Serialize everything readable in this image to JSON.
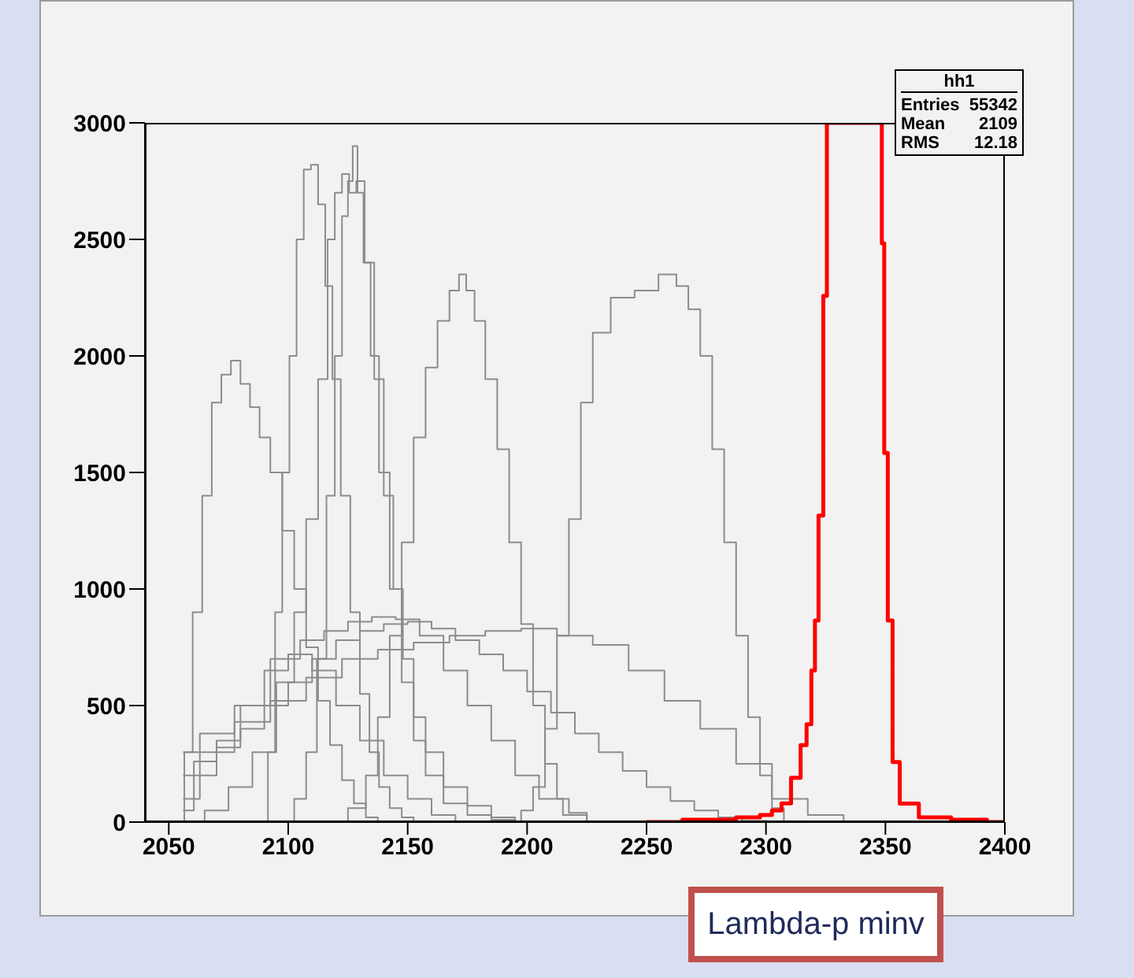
{
  "chart_data": {
    "type": "step",
    "xlim": [
      2040,
      2400
    ],
    "ylim": [
      0,
      3000
    ],
    "xticks": [
      2050,
      2100,
      2150,
      2200,
      2250,
      2300,
      2350,
      2400
    ],
    "yticks": [
      0,
      500,
      1000,
      1500,
      2000,
      2500,
      3000
    ],
    "grid": false,
    "legend": false,
    "marker": "none",
    "line_style": "solid",
    "annotations": [
      "hh1",
      "Entries",
      "55342",
      "Mean",
      "2109",
      "RMS",
      "12.18",
      "Lambda-p minv"
    ],
    "series": [
      {
        "color": "#8c8c8c",
        "x": [
          2055,
          2058,
          2062,
          2066,
          2070,
          2074,
          2078,
          2082,
          2086,
          2090,
          2095,
          2100,
          2105,
          2110,
          2115,
          2120,
          2125,
          2130,
          2135,
          2140
        ],
        "values": [
          0,
          300,
          900,
          1400,
          1800,
          1920,
          1980,
          1880,
          1780,
          1650,
          1500,
          1250,
          1000,
          750,
          520,
          330,
          180,
          80,
          20,
          0
        ]
      },
      {
        "color": "#8c8c8c",
        "x": [
          2090,
          2093,
          2096,
          2099,
          2102,
          2105,
          2108,
          2111,
          2114,
          2117,
          2120,
          2124,
          2128,
          2132,
          2136,
          2140,
          2145,
          2150,
          2155
        ],
        "values": [
          0,
          300,
          900,
          1500,
          2000,
          2500,
          2800,
          2820,
          2650,
          2300,
          1900,
          1400,
          900,
          550,
          300,
          150,
          60,
          20,
          0
        ]
      },
      {
        "color": "#8c8c8c",
        "x": [
          2100,
          2105,
          2110,
          2114,
          2118,
          2121,
          2124,
          2126,
          2128,
          2130,
          2133,
          2136,
          2140,
          2145,
          2150,
          2155,
          2160,
          2170,
          2180,
          2190,
          2200
        ],
        "values": [
          0,
          100,
          300,
          700,
          1400,
          2000,
          2600,
          2750,
          2900,
          2700,
          2400,
          2000,
          1500,
          1000,
          600,
          350,
          200,
          80,
          30,
          10,
          0
        ]
      },
      {
        "color": "#8c8c8c",
        "x": [
          2060,
          2070,
          2080,
          2090,
          2100,
          2105,
          2110,
          2115,
          2118,
          2121,
          2124,
          2127,
          2130,
          2134,
          2138,
          2142,
          2146,
          2150,
          2155,
          2160,
          2170,
          2180,
          2190,
          2200
        ],
        "values": [
          0,
          50,
          150,
          300,
          600,
          900,
          1300,
          1900,
          2500,
          2700,
          2780,
          2700,
          2750,
          2400,
          1900,
          1400,
          1000,
          700,
          450,
          300,
          150,
          70,
          20,
          0
        ]
      },
      {
        "color": "#8c8c8c",
        "x": [
          2120,
          2130,
          2135,
          2140,
          2145,
          2150,
          2155,
          2160,
          2165,
          2170,
          2173,
          2176,
          2180,
          2185,
          2190,
          2195,
          2200,
          2205,
          2210,
          2215,
          2220,
          2230
        ],
        "values": [
          0,
          60,
          200,
          450,
          800,
          1200,
          1650,
          1950,
          2150,
          2280,
          2350,
          2280,
          2150,
          1900,
          1600,
          1200,
          850,
          500,
          250,
          100,
          40,
          0
        ]
      },
      {
        "color": "#8c8c8c",
        "x": [
          2195,
          2200,
          2205,
          2210,
          2215,
          2220,
          2225,
          2230,
          2240,
          2250,
          2260,
          2265,
          2270,
          2275,
          2280,
          2285,
          2290,
          2295,
          2300,
          2305,
          2310
        ],
        "values": [
          0,
          50,
          150,
          400,
          800,
          1300,
          1800,
          2100,
          2250,
          2280,
          2350,
          2300,
          2200,
          2000,
          1600,
          1200,
          800,
          450,
          200,
          60,
          0
        ]
      },
      {
        "color": "#8c8c8c",
        "x": [
          2056,
          2065,
          2075,
          2085,
          2095,
          2105,
          2115,
          2125,
          2135,
          2145,
          2155,
          2165,
          2175,
          2185,
          2195,
          2205,
          2215,
          2225,
          2235,
          2245,
          2255,
          2265,
          2275,
          2285,
          2295,
          2305
        ],
        "values": [
          200,
          260,
          320,
          400,
          500,
          600,
          700,
          780,
          820,
          850,
          860,
          830,
          780,
          720,
          650,
          560,
          470,
          380,
          300,
          220,
          150,
          90,
          50,
          20,
          5,
          0
        ]
      },
      {
        "color": "#8c8c8c",
        "x": [
          2056,
          2070,
          2085,
          2100,
          2115,
          2130,
          2145,
          2160,
          2175,
          2190,
          2205,
          2220,
          2235,
          2250,
          2265,
          2280,
          2295,
          2310,
          2325,
          2340
        ],
        "values": [
          300,
          380,
          430,
          520,
          620,
          700,
          740,
          770,
          800,
          820,
          830,
          800,
          760,
          650,
          520,
          400,
          250,
          100,
          30,
          0
        ]
      },
      {
        "color": "#8c8c8c",
        "x": [
          2056,
          2070,
          2085,
          2100,
          2110,
          2120,
          2130,
          2140,
          2150,
          2160,
          2170,
          2180,
          2190,
          2200,
          2210,
          2220,
          2230
        ],
        "values": [
          100,
          300,
          500,
          700,
          780,
          820,
          860,
          880,
          870,
          800,
          650,
          500,
          350,
          200,
          100,
          30,
          0
        ]
      },
      {
        "color": "#8c8c8c",
        "x": [
          2056,
          2065,
          2075,
          2085,
          2095,
          2105,
          2115,
          2125,
          2135,
          2145,
          2155,
          2165,
          2175
        ],
        "values": [
          50,
          200,
          350,
          500,
          650,
          720,
          650,
          500,
          350,
          200,
          100,
          30,
          0
        ]
      },
      {
        "color": "#ff0000",
        "x": [
          2250,
          2280,
          2295,
          2300,
          2305,
          2308,
          2313,
          2316,
          2318,
          2320,
          2321,
          2323,
          2325,
          2326,
          2348,
          2349,
          2350,
          2352,
          2354,
          2358,
          2370,
          2385,
          2400
        ],
        "values": [
          0,
          10,
          20,
          30,
          50,
          80,
          190,
          330,
          420,
          650,
          865,
          1315,
          2258,
          3000,
          3000,
          2483,
          1584,
          865,
          258,
          79,
          20,
          10,
          0
        ]
      }
    ]
  }
}
